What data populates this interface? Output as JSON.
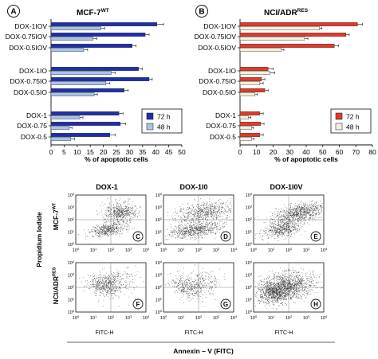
{
  "chart_data": [
    {
      "type": "bar",
      "orientation": "horizontal",
      "panel": "A",
      "title": "MCF-7",
      "title_sup": "WT",
      "xlabel": "% of apoptotic cells",
      "xlim": [
        0,
        50
      ],
      "xticks": [
        0,
        5,
        10,
        15,
        20,
        25,
        30,
        35,
        40,
        45,
        50
      ],
      "categories": [
        "DOX-1IOV",
        "DOX-0.75IOV",
        "DOX-0.5IOV",
        "DOX-1IO",
        "DOX-0.75IO",
        "DOX-0.5IO",
        "DOX-1",
        "DOX-0.75",
        "DOX-0.5"
      ],
      "legend_position": "lower-right",
      "series": [
        {
          "name": "72 h",
          "values": [
            40.5,
            36,
            31,
            33.5,
            37.5,
            28,
            26,
            26.5,
            22.5
          ],
          "errors": [
            2.5,
            1.5,
            1.5,
            1.5,
            1.2,
            1.5,
            1.5,
            2,
            2
          ]
        },
        {
          "name": "48 h",
          "values": [
            19,
            16,
            12.5,
            23,
            21,
            16.5,
            11,
            7,
            7.5
          ],
          "errors": [
            1.5,
            1.5,
            1.5,
            1.5,
            1.5,
            1.2,
            1.2,
            1,
            1.5
          ]
        }
      ],
      "colors": {
        "72 h": "#1f2fa8",
        "48 h": "#a9c4e6"
      }
    },
    {
      "type": "bar",
      "orientation": "horizontal",
      "panel": "B",
      "title": "NCI/ADR",
      "title_sup": "RES",
      "xlabel": "% of apoptotic cells",
      "xlim": [
        0,
        80
      ],
      "xticks": [
        0,
        10,
        20,
        30,
        40,
        50,
        60,
        70,
        80
      ],
      "categories": [
        "DOX-1IOV",
        "DOX-0.75IOV",
        "DOX-0.5IOV",
        "DOX-1IO",
        "DOX-0.75IO",
        "DOX-0.5IO",
        "DOX-1",
        "DOX-0.75",
        "DOX-0.5"
      ],
      "legend_position": "lower-right",
      "series": [
        {
          "name": "72 h",
          "values": [
            71,
            64,
            57,
            17,
            13,
            15,
            12,
            12.5,
            12
          ],
          "errors": [
            3,
            2,
            2.5,
            3,
            2,
            2,
            2,
            2,
            2
          ]
        },
        {
          "name": "48 h",
          "values": [
            48,
            39,
            25,
            18,
            12,
            9,
            5,
            7,
            7
          ],
          "errors": [
            1.5,
            2,
            1.5,
            3,
            2,
            1.5,
            1.5,
            1,
            1.5
          ]
        }
      ],
      "colors": {
        "72 h": "#e03a2c",
        "48 h": "#f3f1dc"
      }
    }
  ],
  "panelA": {
    "letter": "A",
    "title": "MCF-7",
    "title_sup": "WT",
    "xlabel": "% of apoptotic cells",
    "legend_72": "72 h",
    "legend_48": "48 h"
  },
  "panelB": {
    "letter": "B",
    "title": "NCI/ADR",
    "title_sup": "RES",
    "xlabel": "% of apoptotic cells",
    "legend_72": "72 h",
    "legend_48": "48 h"
  },
  "flow": {
    "col_titles": [
      "DOX-1",
      "DOX-1I0",
      "DOX-1I0V"
    ],
    "row_label_top": "MCF-7",
    "row_label_top_sup": "WT",
    "row_label_bottom": "NCI/ADR",
    "row_label_bottom_sup": "RES",
    "ylabel": "Propidium Iodide",
    "xlabel_small": "FITC-H",
    "xlabel_main": "Annexin – V (FITC)",
    "panel_letters": [
      "C",
      "D",
      "E",
      "F",
      "G",
      "H"
    ],
    "tick_base": "10",
    "tick_exps": [
      "0",
      "1",
      "2",
      "3",
      "4"
    ]
  }
}
